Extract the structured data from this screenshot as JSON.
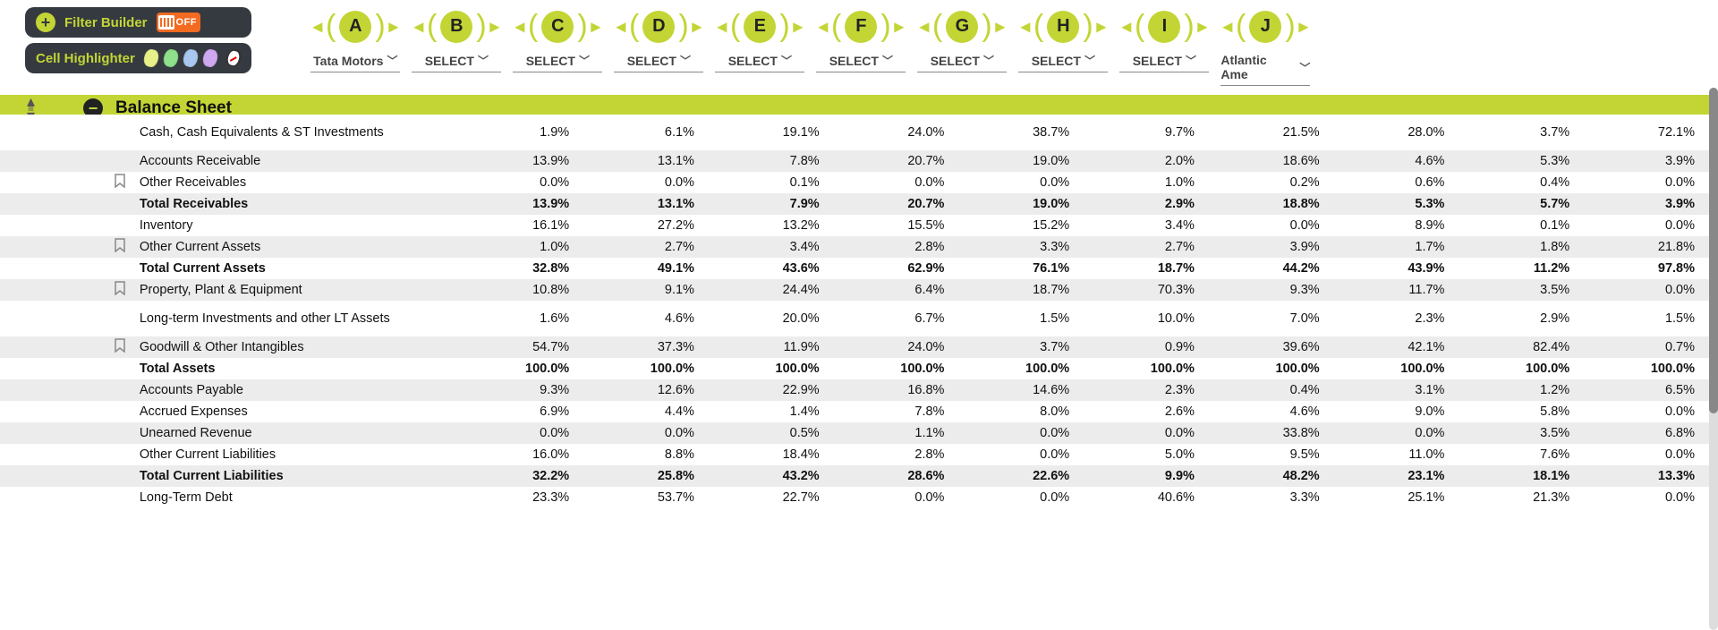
{
  "toolbar": {
    "filter_builder_label": "Filter Builder",
    "off_label": "OFF",
    "cell_highlighter_label": "Cell Highlighter",
    "highlighter_colors": [
      "#e8f08a",
      "#8ee08a",
      "#a8c8f0",
      "#d0a8f0"
    ]
  },
  "columns": [
    {
      "letter": "A",
      "select_label": "Tata Motors"
    },
    {
      "letter": "B",
      "select_label": "SELECT"
    },
    {
      "letter": "C",
      "select_label": "SELECT"
    },
    {
      "letter": "D",
      "select_label": "SELECT"
    },
    {
      "letter": "E",
      "select_label": "SELECT"
    },
    {
      "letter": "F",
      "select_label": "SELECT"
    },
    {
      "letter": "G",
      "select_label": "SELECT"
    },
    {
      "letter": "H",
      "select_label": "SELECT"
    },
    {
      "letter": "I",
      "select_label": "SELECT"
    },
    {
      "letter": "J",
      "select_label": "Atlantic Ame"
    }
  ],
  "section": {
    "title": "Balance Sheet"
  },
  "rows": [
    {
      "label": "Cash, Cash Equivalents & ST Investments",
      "tall": true,
      "bookmark": false,
      "bold": false,
      "values": [
        "1.9%",
        "6.1%",
        "19.1%",
        "24.0%",
        "38.7%",
        "9.7%",
        "21.5%",
        "28.0%",
        "3.7%",
        "72.1%"
      ]
    },
    {
      "label": "Accounts Receivable",
      "bookmark": false,
      "bold": false,
      "values": [
        "13.9%",
        "13.1%",
        "7.8%",
        "20.7%",
        "19.0%",
        "2.0%",
        "18.6%",
        "4.6%",
        "5.3%",
        "3.9%"
      ]
    },
    {
      "label": "Other Receivables",
      "bookmark": true,
      "bold": false,
      "values": [
        "0.0%",
        "0.0%",
        "0.1%",
        "0.0%",
        "0.0%",
        "1.0%",
        "0.2%",
        "0.6%",
        "0.4%",
        "0.0%"
      ]
    },
    {
      "label": "Total Receivables",
      "bookmark": false,
      "bold": true,
      "values": [
        "13.9%",
        "13.1%",
        "7.9%",
        "20.7%",
        "19.0%",
        "2.9%",
        "18.8%",
        "5.3%",
        "5.7%",
        "3.9%"
      ]
    },
    {
      "label": "Inventory",
      "bookmark": false,
      "bold": false,
      "values": [
        "16.1%",
        "27.2%",
        "13.2%",
        "15.5%",
        "15.2%",
        "3.4%",
        "0.0%",
        "8.9%",
        "0.1%",
        "0.0%"
      ]
    },
    {
      "label": "Other Current Assets",
      "bookmark": true,
      "bold": false,
      "values": [
        "1.0%",
        "2.7%",
        "3.4%",
        "2.8%",
        "3.3%",
        "2.7%",
        "3.9%",
        "1.7%",
        "1.8%",
        "21.8%"
      ]
    },
    {
      "label": "Total Current Assets",
      "bookmark": false,
      "bold": true,
      "values": [
        "32.8%",
        "49.1%",
        "43.6%",
        "62.9%",
        "76.1%",
        "18.7%",
        "44.2%",
        "43.9%",
        "11.2%",
        "97.8%"
      ]
    },
    {
      "label": "Property, Plant & Equipment",
      "bookmark": true,
      "bold": false,
      "values": [
        "10.8%",
        "9.1%",
        "24.4%",
        "6.4%",
        "18.7%",
        "70.3%",
        "9.3%",
        "11.7%",
        "3.5%",
        "0.0%"
      ]
    },
    {
      "label": "Long-term Investments and other LT Assets",
      "tall": true,
      "bookmark": false,
      "bold": false,
      "values": [
        "1.6%",
        "4.6%",
        "20.0%",
        "6.7%",
        "1.5%",
        "10.0%",
        "7.0%",
        "2.3%",
        "2.9%",
        "1.5%"
      ]
    },
    {
      "label": "Goodwill & Other Intangibles",
      "bookmark": true,
      "bold": false,
      "values": [
        "54.7%",
        "37.3%",
        "11.9%",
        "24.0%",
        "3.7%",
        "0.9%",
        "39.6%",
        "42.1%",
        "82.4%",
        "0.7%"
      ]
    },
    {
      "label": "Total Assets",
      "bookmark": false,
      "bold": true,
      "values": [
        "100.0%",
        "100.0%",
        "100.0%",
        "100.0%",
        "100.0%",
        "100.0%",
        "100.0%",
        "100.0%",
        "100.0%",
        "100.0%"
      ]
    },
    {
      "label": "Accounts Payable",
      "bookmark": false,
      "bold": false,
      "values": [
        "9.3%",
        "12.6%",
        "22.9%",
        "16.8%",
        "14.6%",
        "2.3%",
        "0.4%",
        "3.1%",
        "1.2%",
        "6.5%"
      ]
    },
    {
      "label": "Accrued Expenses",
      "bookmark": false,
      "bold": false,
      "values": [
        "6.9%",
        "4.4%",
        "1.4%",
        "7.8%",
        "8.0%",
        "2.6%",
        "4.6%",
        "9.0%",
        "5.8%",
        "0.0%"
      ]
    },
    {
      "label": "Unearned Revenue",
      "bookmark": false,
      "bold": false,
      "values": [
        "0.0%",
        "0.0%",
        "0.5%",
        "1.1%",
        "0.0%",
        "0.0%",
        "33.8%",
        "0.0%",
        "3.5%",
        "6.8%"
      ]
    },
    {
      "label": "Other Current Liabilities",
      "bookmark": false,
      "bold": false,
      "values": [
        "16.0%",
        "8.8%",
        "18.4%",
        "2.8%",
        "0.0%",
        "5.0%",
        "9.5%",
        "11.0%",
        "7.6%",
        "0.0%"
      ]
    },
    {
      "label": "Total Current Liabilities",
      "bookmark": false,
      "bold": true,
      "values": [
        "32.2%",
        "25.8%",
        "43.2%",
        "28.6%",
        "22.6%",
        "9.9%",
        "48.2%",
        "23.1%",
        "18.1%",
        "13.3%"
      ]
    },
    {
      "label": "Long-Term Debt",
      "bookmark": false,
      "bold": false,
      "values": [
        "23.3%",
        "53.7%",
        "22.7%",
        "0.0%",
        "0.0%",
        "40.6%",
        "3.3%",
        "25.1%",
        "21.3%",
        "0.0%"
      ]
    }
  ],
  "colors": {
    "accent": "#c3d535",
    "toolbar_bg": "#353a40",
    "toggle_bg": "#f36a21",
    "row_alt": "#ececec"
  }
}
